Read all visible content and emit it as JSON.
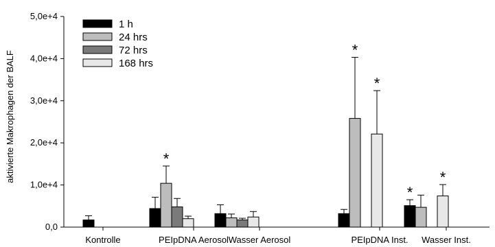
{
  "chart_data": {
    "type": "bar",
    "ylabel": "aktivierte Makrophagen der BALF",
    "xlabel": "",
    "title": "",
    "ylim": [
      0,
      50000
    ],
    "yticks": [
      0,
      10000,
      20000,
      30000,
      40000,
      50000
    ],
    "ytick_labels": [
      "0,0",
      "1,0e+4",
      "2,0e+4",
      "3,0e+4",
      "4,0e+4",
      "5,0e+4"
    ],
    "legend_position": "top-left",
    "grid": false,
    "categories": [
      "Kontrolle",
      "PEIpDNA Aerosol",
      "Wasser Aerosol",
      "PEIpDNA Inst.",
      "Wasser Inst."
    ],
    "series": [
      {
        "name": "1 h",
        "color": "#000000",
        "values": [
          1700,
          4400,
          3200,
          3200,
          5100
        ],
        "errors": [
          1000,
          2700,
          2100,
          1000,
          1400
        ],
        "significant": [
          false,
          false,
          false,
          false,
          true
        ]
      },
      {
        "name": "24 hrs",
        "color": "#bdbdbd",
        "values": [
          null,
          10400,
          2200,
          25800,
          4700
        ],
        "errors": [
          null,
          4100,
          900,
          14500,
          2900
        ],
        "significant": [
          false,
          true,
          false,
          true,
          false
        ]
      },
      {
        "name": "72 hrs",
        "color": "#7a7a7a",
        "values": [
          null,
          4800,
          1700,
          0,
          0
        ],
        "errors": [
          null,
          2000,
          400,
          0,
          0
        ],
        "significant": [
          false,
          false,
          false,
          false,
          false
        ]
      },
      {
        "name": "168 hrs",
        "color": "#e8e8e8",
        "values": [
          null,
          2000,
          2400,
          22100,
          7400
        ],
        "errors": [
          null,
          600,
          1300,
          10300,
          2700
        ],
        "significant": [
          false,
          false,
          false,
          true,
          true
        ]
      }
    ],
    "significance_marker": "*"
  }
}
